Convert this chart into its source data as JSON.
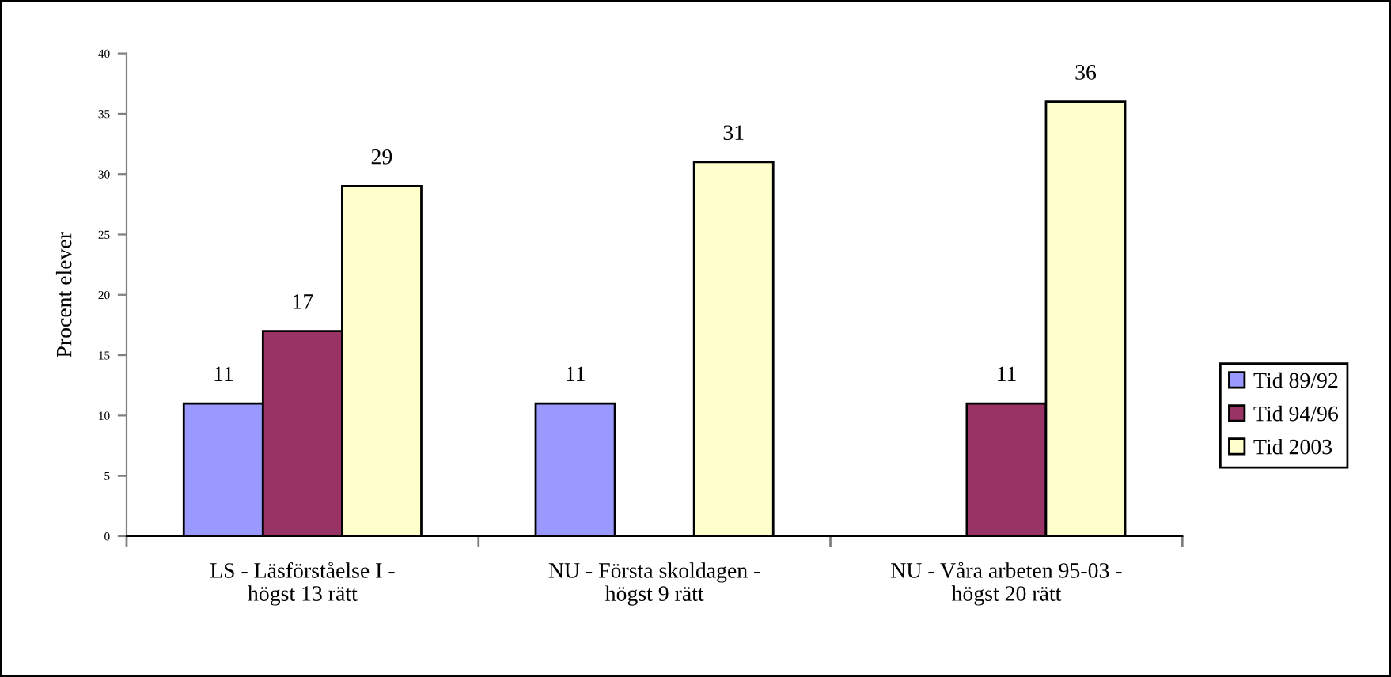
{
  "chart_data": {
    "type": "bar",
    "ylabel": "Procent elever",
    "categories": [
      "LS - Läsförståelse I -\nhögst 13 rätt",
      "NU - Första skoldagen -\nhögst 9 rätt",
      "NU - Våra arbeten 95-03 -\nhögst 20 rätt"
    ],
    "series": [
      {
        "name": "Tid 89/92",
        "color": "#9999ff",
        "values": [
          11,
          11,
          null
        ]
      },
      {
        "name": "Tid 94/96",
        "color": "#993366",
        "values": [
          17,
          null,
          11
        ]
      },
      {
        "name": "Tid 2003",
        "color": "#ffffcc",
        "values": [
          29,
          31,
          36
        ]
      }
    ],
    "ylim": [
      0,
      40
    ],
    "yticks": [
      0,
      5,
      10,
      15,
      20,
      25,
      30,
      35,
      40
    ],
    "data_labels": true,
    "legend": "right",
    "grid": false
  }
}
